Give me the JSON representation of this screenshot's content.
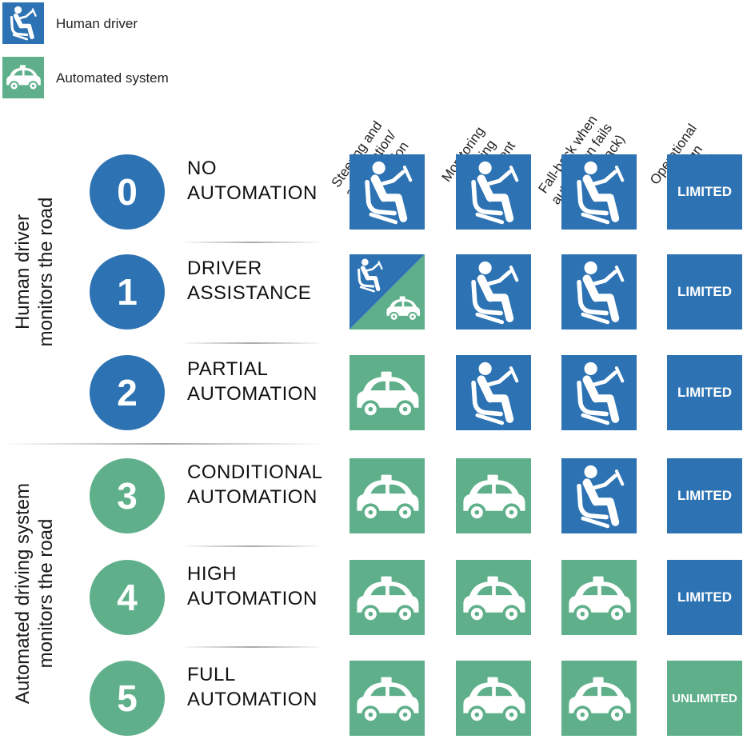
{
  "colors": {
    "human": "#2d73b3",
    "automated": "#5fb08a"
  },
  "legend": [
    {
      "label": "Human driver",
      "icon": "human-driver-icon",
      "type": "human"
    },
    {
      "label": "Automated system",
      "icon": "automated-car-icon",
      "type": "automated"
    }
  ],
  "columns": [
    [
      "Steering and",
      "acceleration/",
      "deceleration"
    ],
    [
      "Monitoring",
      "of driving",
      "environment"
    ],
    [
      "Fall-back when",
      "automation fails",
      "(DDT fall-back)"
    ],
    [
      "Operational",
      "Design",
      "Domain"
    ]
  ],
  "groups": [
    {
      "lines": [
        "Human driver",
        "monitors the road"
      ]
    },
    {
      "lines": [
        "Automated driving system",
        "monitors the road"
      ]
    }
  ],
  "levels": [
    {
      "number": "0",
      "name": [
        "NO",
        "AUTOMATION"
      ],
      "type": "human",
      "cells": [
        "human",
        "human",
        "human"
      ],
      "odd": "LIMITED",
      "odd_type": "human"
    },
    {
      "number": "1",
      "name": [
        "DRIVER",
        "ASSISTANCE"
      ],
      "type": "human",
      "cells": [
        "split",
        "human",
        "human"
      ],
      "odd": "LIMITED",
      "odd_type": "human"
    },
    {
      "number": "2",
      "name": [
        "PARTIAL",
        "AUTOMATION"
      ],
      "type": "human",
      "cells": [
        "automated",
        "human",
        "human"
      ],
      "odd": "LIMITED",
      "odd_type": "human"
    },
    {
      "number": "3",
      "name": [
        "CONDITIONAL",
        "AUTOMATION"
      ],
      "type": "automated",
      "cells": [
        "automated",
        "automated",
        "human"
      ],
      "odd": "LIMITED",
      "odd_type": "human"
    },
    {
      "number": "4",
      "name": [
        "HIGH",
        "AUTOMATION"
      ],
      "type": "automated",
      "cells": [
        "automated",
        "automated",
        "automated"
      ],
      "odd": "LIMITED",
      "odd_type": "human"
    },
    {
      "number": "5",
      "name": [
        "FULL",
        "AUTOMATION"
      ],
      "type": "automated",
      "cells": [
        "automated",
        "automated",
        "automated"
      ],
      "odd": "UNLIMITED",
      "odd_type": "automated"
    }
  ]
}
